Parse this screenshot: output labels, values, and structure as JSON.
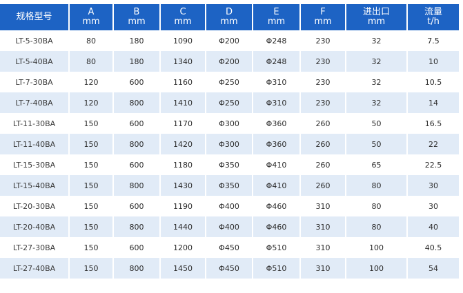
{
  "table": {
    "headers": [
      {
        "line1": "规格型号",
        "line2": ""
      },
      {
        "line1": "A",
        "line2": "mm"
      },
      {
        "line1": "B",
        "line2": "mm"
      },
      {
        "line1": "C",
        "line2": "mm"
      },
      {
        "line1": "D",
        "line2": "mm"
      },
      {
        "line1": "E",
        "line2": "mm"
      },
      {
        "line1": "F",
        "line2": "mm"
      },
      {
        "line1": "进出口",
        "line2": "mm"
      },
      {
        "line1": "流量",
        "line2": "t/h"
      }
    ],
    "rows": [
      [
        "LT-5-30BA",
        "80",
        "180",
        "1090",
        "Φ200",
        "Φ248",
        "230",
        "32",
        "7.5"
      ],
      [
        "LT-5-40BA",
        "80",
        "180",
        "1340",
        "Φ200",
        "Φ248",
        "230",
        "32",
        "10"
      ],
      [
        "LT-7-30BA",
        "120",
        "600",
        "1160",
        "Φ250",
        "Φ310",
        "230",
        "32",
        "10.5"
      ],
      [
        "LT-7-40BA",
        "120",
        "800",
        "1410",
        "Φ250",
        "Φ310",
        "230",
        "32",
        "14"
      ],
      [
        "LT-11-30BA",
        "150",
        "600",
        "1170",
        "Φ300",
        "Φ360",
        "260",
        "50",
        "16.5"
      ],
      [
        "LT-11-40BA",
        "150",
        "800",
        "1420",
        "Φ300",
        "Φ360",
        "260",
        "50",
        "22"
      ],
      [
        "LT-15-30BA",
        "150",
        "600",
        "1180",
        "Φ350",
        "Φ410",
        "260",
        "65",
        "22.5"
      ],
      [
        "LT-15-40BA",
        "150",
        "800",
        "1430",
        "Φ350",
        "Φ410",
        "260",
        "80",
        "30"
      ],
      [
        "LT-20-30BA",
        "150",
        "600",
        "1190",
        "Φ400",
        "Φ460",
        "310",
        "80",
        "30"
      ],
      [
        "LT-20-40BA",
        "150",
        "800",
        "1440",
        "Φ400",
        "Φ460",
        "310",
        "80",
        "40"
      ],
      [
        "LT-27-30BA",
        "150",
        "600",
        "1200",
        "Φ450",
        "Φ510",
        "310",
        "100",
        "40.5"
      ],
      [
        "LT-27-40BA",
        "150",
        "800",
        "1450",
        "Φ450",
        "Φ510",
        "310",
        "100",
        "54"
      ]
    ]
  },
  "colors": {
    "header_bg": "#1d63c4",
    "header_text": "#ffffff",
    "stripe_bg": "#e1ebf7",
    "row_bg": "#ffffff",
    "cell_text": "#2b2b2b"
  }
}
